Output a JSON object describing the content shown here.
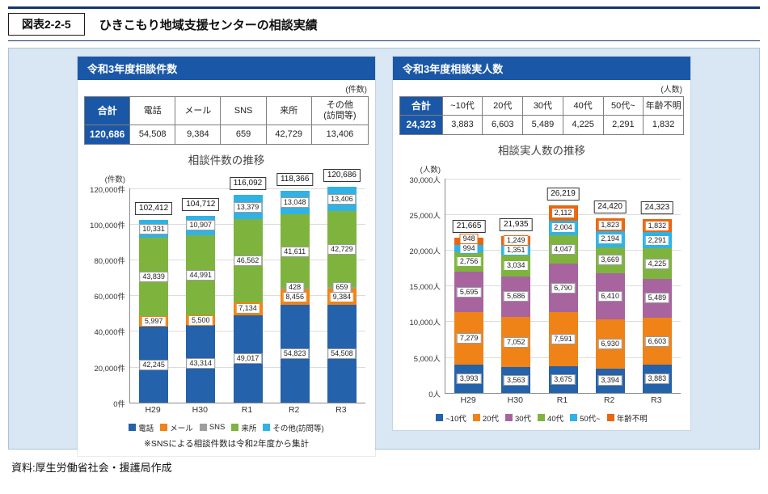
{
  "header": {
    "figure_label": "図表2-2-5",
    "title": "ひきこもり地域支援センターの相談実績"
  },
  "source": "資料:厚生労働省社会・援護局作成",
  "theme": {
    "accent_blue": "#1b57a7",
    "panel_bg": "#d9e6f3",
    "panel_border": "#a9c4da"
  },
  "panels": [
    {
      "header": "令和3年度相談件数",
      "unit": "(件数)",
      "table": {
        "total_header": "合計",
        "total_value": "120,686",
        "columns": [
          "電話",
          "メール",
          "SNS",
          "来所",
          "その他\n(訪問等)"
        ],
        "values": [
          "54,508",
          "9,384",
          "659",
          "42,729",
          "13,406"
        ]
      },
      "note": "※SNSによる相談件数は令和2年度から集計"
    },
    {
      "header": "令和3年度相談実人数",
      "unit": "(人数)",
      "table": {
        "total_header": "合計",
        "total_value": "24,323",
        "columns": [
          "~10代",
          "20代",
          "30代",
          "40代",
          "50代~",
          "年齢不明"
        ],
        "values": [
          "3,883",
          "6,603",
          "5,489",
          "4,225",
          "2,291",
          "1,832"
        ]
      }
    }
  ],
  "chart_data": [
    {
      "type": "bar",
      "stacked": true,
      "title": "相談件数の推移",
      "ylabel": "(件数)",
      "y_unit": "件",
      "ylim": [
        0,
        120000
      ],
      "ytick_step": 20000,
      "grid": true,
      "legend_position": "bottom",
      "categories": [
        "H29",
        "H30",
        "R1",
        "R2",
        "R3"
      ],
      "series": [
        {
          "name": "電話",
          "color": "#2462ab",
          "values": [
            42245,
            43314,
            49017,
            54823,
            54508
          ]
        },
        {
          "name": "メール",
          "color": "#ef8318",
          "values": [
            5997,
            5500,
            7134,
            8456,
            9384
          ]
        },
        {
          "name": "SNS",
          "color": "#9e9e9e",
          "values": [
            null,
            null,
            null,
            428,
            659
          ]
        },
        {
          "name": "来所",
          "color": "#7eb43e",
          "values": [
            43839,
            44991,
            46562,
            41611,
            42729
          ]
        },
        {
          "name": "その他(訪問等)",
          "color": "#31b2e4",
          "values": [
            10331,
            10907,
            13379,
            13048,
            13406
          ]
        }
      ],
      "totals": [
        102412,
        104712,
        116092,
        118366,
        120686
      ]
    },
    {
      "type": "bar",
      "stacked": true,
      "title": "相談実人数の推移",
      "ylabel": "(人数)",
      "y_unit": "人",
      "ylim": [
        0,
        30000
      ],
      "ytick_step": 5000,
      "grid": true,
      "legend_position": "bottom",
      "categories": [
        "H29",
        "H30",
        "R1",
        "R2",
        "R3"
      ],
      "series": [
        {
          "name": "~10代",
          "color": "#2462ab",
          "values": [
            3993,
            3563,
            3675,
            3394,
            3883
          ]
        },
        {
          "name": "20代",
          "color": "#ef8318",
          "values": [
            7279,
            7052,
            7591,
            6930,
            6603
          ]
        },
        {
          "name": "30代",
          "color": "#a8649e",
          "values": [
            5695,
            5686,
            6790,
            6410,
            5489
          ]
        },
        {
          "name": "40代",
          "color": "#7eb43e",
          "values": [
            2756,
            3034,
            4047,
            3669,
            4225
          ]
        },
        {
          "name": "50代~",
          "color": "#31b2e4",
          "values": [
            994,
            1351,
            2004,
            2194,
            2291
          ]
        },
        {
          "name": "年齢不明",
          "color": "#e9650f",
          "values": [
            948,
            1249,
            2112,
            1823,
            1832
          ]
        }
      ],
      "totals": [
        21665,
        21935,
        26219,
        24420,
        24323
      ]
    }
  ]
}
